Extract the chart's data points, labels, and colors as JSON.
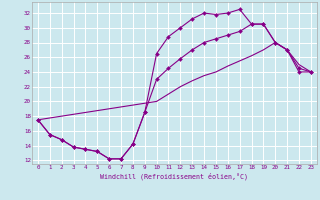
{
  "xlabel": "Windchill (Refroidissement éolien,°C)",
  "bg_color": "#cce8ee",
  "line_color": "#880088",
  "xlim": [
    -0.5,
    23.5
  ],
  "ylim": [
    11.5,
    33.5
  ],
  "yticks": [
    12,
    14,
    16,
    18,
    20,
    22,
    24,
    26,
    28,
    30,
    32
  ],
  "xticks": [
    0,
    1,
    2,
    3,
    4,
    5,
    6,
    7,
    8,
    9,
    10,
    11,
    12,
    13,
    14,
    15,
    16,
    17,
    18,
    19,
    20,
    21,
    22,
    23
  ],
  "line1_x": [
    0,
    1,
    2,
    3,
    4,
    5,
    6,
    7,
    8,
    9,
    10,
    11,
    12,
    13,
    14,
    15,
    16,
    17,
    18,
    19,
    20,
    21,
    22,
    23
  ],
  "line1_y": [
    17.5,
    15.5,
    14.8,
    13.8,
    13.5,
    13.2,
    12.2,
    12.2,
    14.2,
    18.5,
    26.5,
    28.8,
    30.0,
    31.2,
    32.0,
    31.8,
    32.0,
    32.5,
    30.5,
    30.5,
    28.0,
    27.0,
    24.0,
    24.0
  ],
  "line2_x": [
    0,
    1,
    2,
    3,
    4,
    5,
    6,
    7,
    8,
    9,
    10,
    11,
    12,
    13,
    14,
    15,
    16,
    17,
    18,
    19,
    20,
    21,
    22,
    23
  ],
  "line2_y": [
    17.5,
    15.5,
    14.8,
    13.8,
    13.5,
    13.2,
    12.2,
    12.2,
    14.2,
    18.5,
    23.0,
    24.5,
    25.8,
    27.0,
    28.0,
    28.5,
    29.0,
    29.5,
    30.5,
    30.5,
    28.0,
    27.0,
    24.5,
    24.0
  ],
  "line3_x": [
    0,
    10,
    11,
    12,
    13,
    14,
    15,
    16,
    17,
    18,
    19,
    20,
    21,
    22,
    23
  ],
  "line3_y": [
    17.5,
    20.0,
    21.0,
    22.0,
    22.8,
    23.5,
    24.0,
    24.8,
    25.5,
    26.2,
    27.0,
    28.0,
    27.0,
    25.0,
    24.0
  ]
}
